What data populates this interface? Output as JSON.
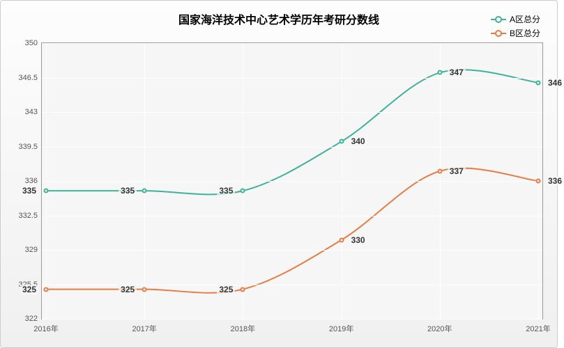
{
  "chart": {
    "type": "line",
    "title": "国家海洋技术中心艺术学历年考研分数线",
    "title_fontsize": 16,
    "background_gradient": [
      "#fdfdfd",
      "#f0f0f0"
    ],
    "plot_background": "#f6f6f6",
    "grid_color": "#ffffff",
    "border_color": "#999999",
    "x": {
      "categories": [
        "2016年",
        "2017年",
        "2018年",
        "2019年",
        "2020年",
        "2021年"
      ],
      "label_fontsize": 11,
      "label_color": "#555555"
    },
    "y": {
      "min": 322,
      "max": 350,
      "tick_step": 3.5,
      "ticks": [
        322,
        325.5,
        329,
        332.5,
        336,
        339.5,
        343,
        346.5,
        350
      ],
      "label_fontsize": 11,
      "label_color": "#555555"
    },
    "legend": {
      "position": "top-right",
      "fontsize": 12
    },
    "series": [
      {
        "name": "A区总分",
        "color": "#3cb39a",
        "line_width": 2,
        "marker": "circle",
        "marker_size": 7,
        "data": [
          335,
          335,
          335,
          340,
          347,
          346
        ],
        "label_positions": [
          "left",
          "left",
          "left",
          "right",
          "right",
          "right"
        ]
      },
      {
        "name": "B区总分",
        "color": "#e87c42",
        "line_width": 2,
        "marker": "circle",
        "marker_size": 7,
        "data": [
          325,
          325,
          325,
          330,
          337,
          336
        ],
        "label_positions": [
          "left",
          "left",
          "left",
          "right",
          "right",
          "right"
        ]
      }
    ],
    "data_label_fontsize": 12,
    "data_label_color": "#333333"
  }
}
